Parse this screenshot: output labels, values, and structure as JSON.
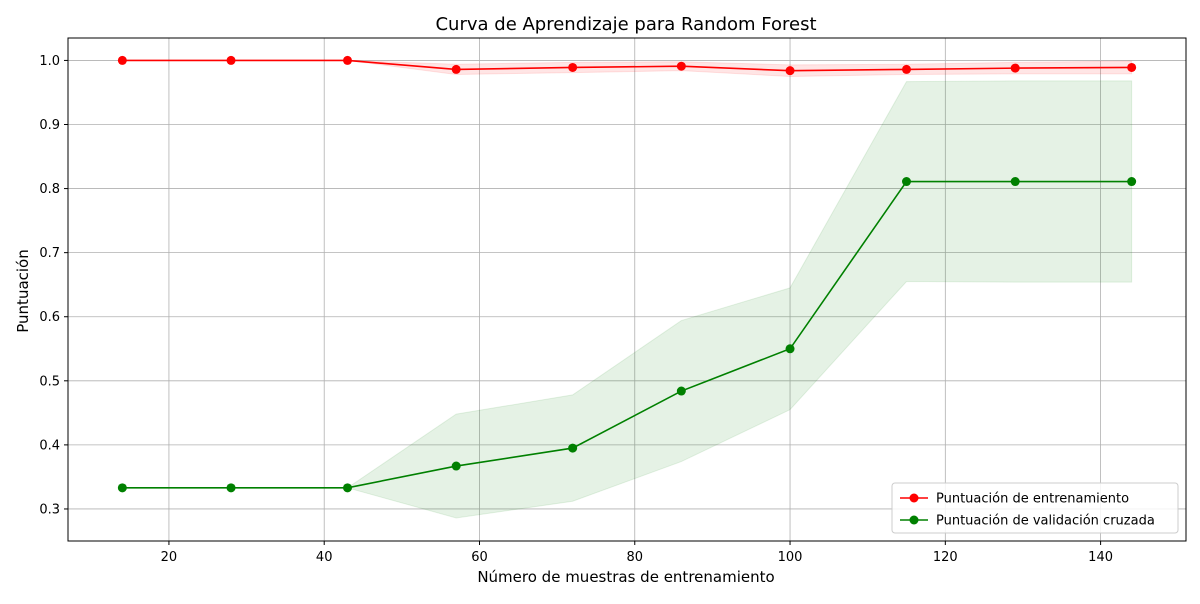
{
  "chart_data": {
    "type": "line",
    "title": "Curva de Aprendizaje para Random Forest",
    "xlabel": "Número de muestras de entrenamiento",
    "ylabel": "Puntuación",
    "xlim": [
      7,
      151
    ],
    "ylim": [
      0.25,
      1.035
    ],
    "xticks": [
      20,
      40,
      60,
      80,
      100,
      120,
      140
    ],
    "yticks": [
      0.3,
      0.4,
      0.5,
      0.6,
      0.7,
      0.8,
      0.9,
      1.0
    ],
    "grid": true,
    "legend_position": "bottom-right",
    "x": [
      14,
      28,
      43,
      57,
      72,
      86,
      100,
      115,
      129,
      144
    ],
    "series": [
      {
        "name": "Puntuación de entrenamiento",
        "color": "#ff0000",
        "values": [
          1.0,
          1.0,
          1.0,
          0.986,
          0.989,
          0.991,
          0.984,
          0.986,
          0.988,
          0.989
        ],
        "band_lower": [
          1.0,
          1.0,
          1.0,
          0.978,
          0.981,
          0.984,
          0.975,
          0.978,
          0.979,
          0.979
        ],
        "band_upper": [
          1.0,
          1.0,
          1.0,
          0.994,
          0.997,
          0.998,
          0.993,
          0.994,
          0.997,
          0.999
        ]
      },
      {
        "name": "Puntuación de validación cruzada",
        "color": "#008000",
        "values": [
          0.333,
          0.333,
          0.333,
          0.367,
          0.395,
          0.484,
          0.55,
          0.811,
          0.811,
          0.811
        ],
        "band_lower": [
          0.333,
          0.333,
          0.333,
          0.286,
          0.312,
          0.374,
          0.455,
          0.655,
          0.654,
          0.654
        ],
        "band_upper": [
          0.333,
          0.333,
          0.333,
          0.448,
          0.478,
          0.594,
          0.645,
          0.967,
          0.968,
          0.968
        ]
      }
    ]
  }
}
